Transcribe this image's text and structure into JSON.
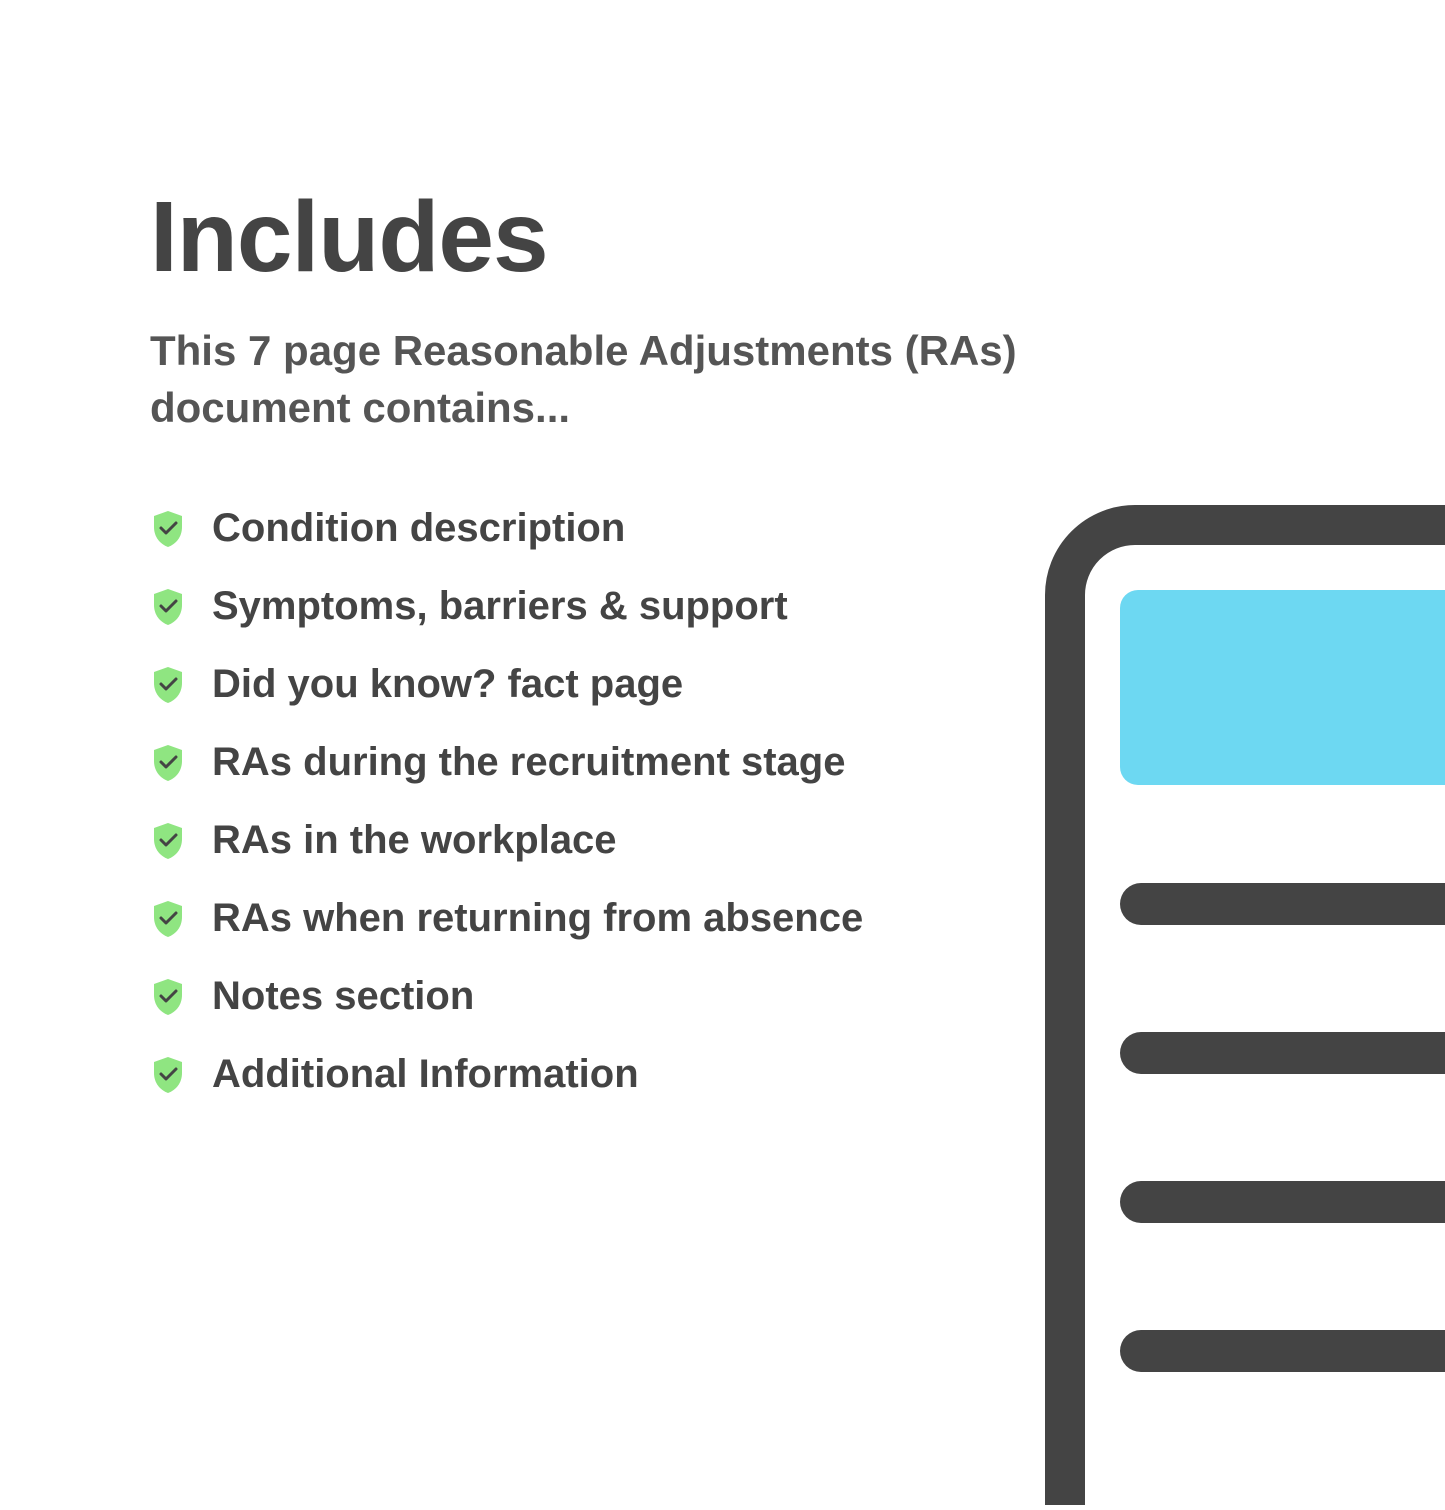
{
  "title": "Includes",
  "subtitle": "This 7 page Reasonable Adjustments (RAs) document contains...",
  "items": [
    {
      "label": "Condition description"
    },
    {
      "label": "Symptoms, barriers & support"
    },
    {
      "label": "Did you know? fact page"
    },
    {
      "label": "RAs during the recruitment stage"
    },
    {
      "label": "RAs in the workplace"
    },
    {
      "label": "RAs when returning from absence"
    },
    {
      "label": "Notes section"
    },
    {
      "label": "Additional Information"
    }
  ],
  "colors": {
    "title": "#444444",
    "text": "#444444",
    "shield": "#8fe581",
    "shield_check": "#444444",
    "clipboard_outline": "#444444",
    "clipboard_bg": "#ffffff",
    "clipboard_header": "#6dd8f2",
    "clipboard_line": "#444444"
  }
}
